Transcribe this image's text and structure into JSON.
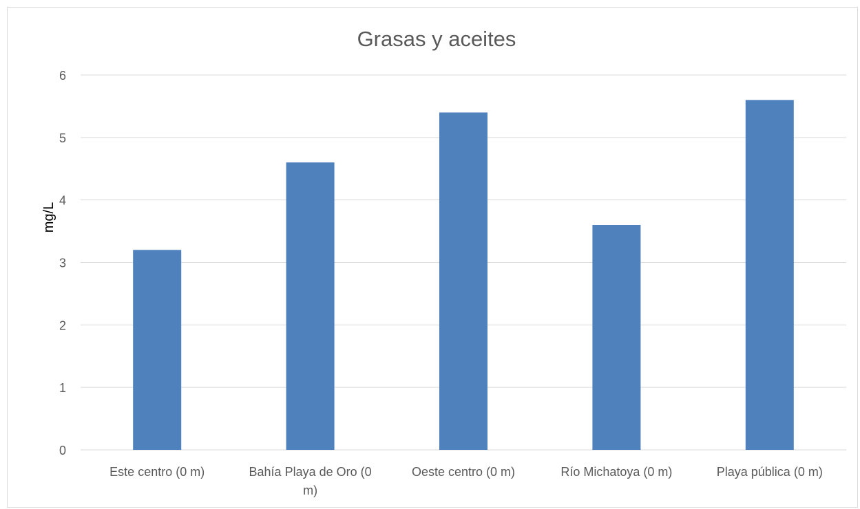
{
  "chart_data": {
    "type": "bar",
    "title": "Grasas y aceites",
    "xlabel": "",
    "ylabel": "mg/L",
    "categories": [
      [
        "Este centro (0 m)"
      ],
      [
        "Bahía Playa de Oro (0",
        "m)"
      ],
      [
        "Oeste centro (0 m)"
      ],
      [
        "Río Michatoya (0 m)"
      ],
      [
        "Playa pública (0 m)"
      ]
    ],
    "values": [
      3.2,
      4.6,
      5.4,
      3.6,
      5.6
    ],
    "ylim": [
      0,
      6
    ],
    "yticks": [
      "0",
      "1",
      "2",
      "3",
      "4",
      "5",
      "6"
    ],
    "grid": true,
    "legend": "none",
    "bar_color": "#4f81bd",
    "grid_color": "#d9d9d9"
  }
}
